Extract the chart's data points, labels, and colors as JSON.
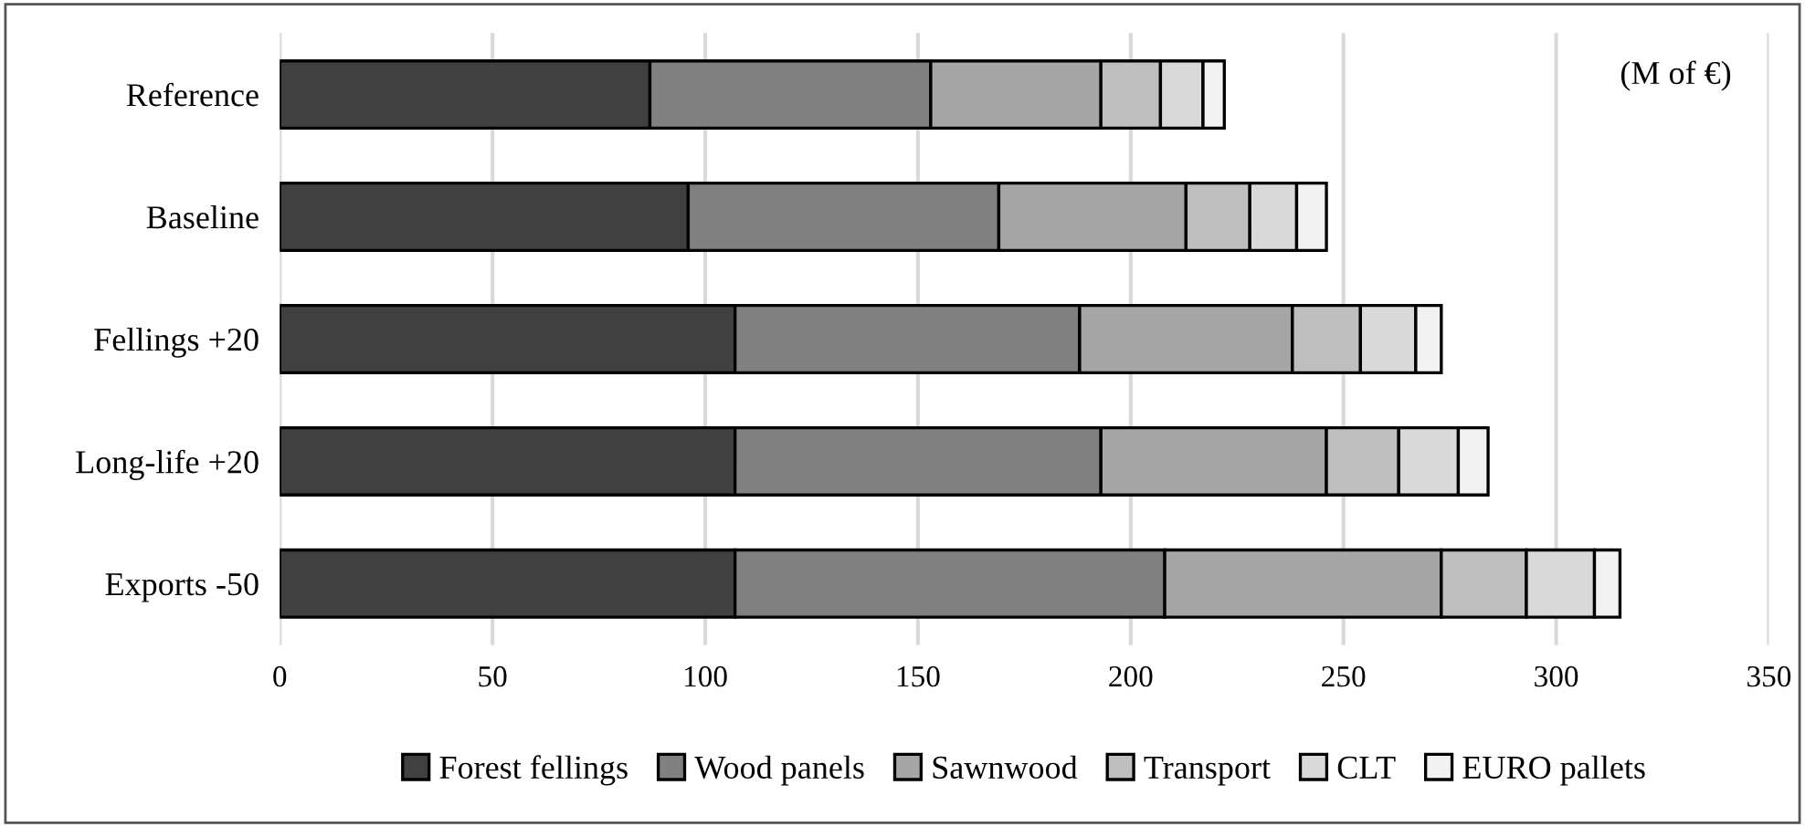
{
  "chart_data": {
    "type": "bar",
    "orientation": "horizontal",
    "stacked": true,
    "categories": [
      "Reference",
      "Baseline",
      "Fellings +20",
      "Long-life +20",
      "Exports -50"
    ],
    "series": [
      {
        "name": "Forest fellings",
        "color": "#404040",
        "values": [
          87,
          96,
          107,
          107,
          107
        ]
      },
      {
        "name": "Wood panels",
        "color": "#808080",
        "values": [
          66,
          73,
          81,
          86,
          101
        ]
      },
      {
        "name": "Sawnwood",
        "color": "#a6a6a6",
        "values": [
          40,
          44,
          50,
          53,
          65
        ]
      },
      {
        "name": "Transport",
        "color": "#bfbfbf",
        "values": [
          14,
          15,
          16,
          17,
          20
        ]
      },
      {
        "name": "CLT",
        "color": "#d9d9d9",
        "values": [
          10,
          11,
          13,
          14,
          16
        ]
      },
      {
        "name": "EURO pallets",
        "color": "#f2f2f2",
        "values": [
          5,
          7,
          6,
          7,
          6
        ]
      }
    ],
    "xlim": [
      0,
      350
    ],
    "xticks": [
      0,
      50,
      100,
      150,
      200,
      250,
      300,
      350
    ],
    "grid": "x",
    "legend": "bottom",
    "annotations": [
      "(M of €)"
    ]
  }
}
